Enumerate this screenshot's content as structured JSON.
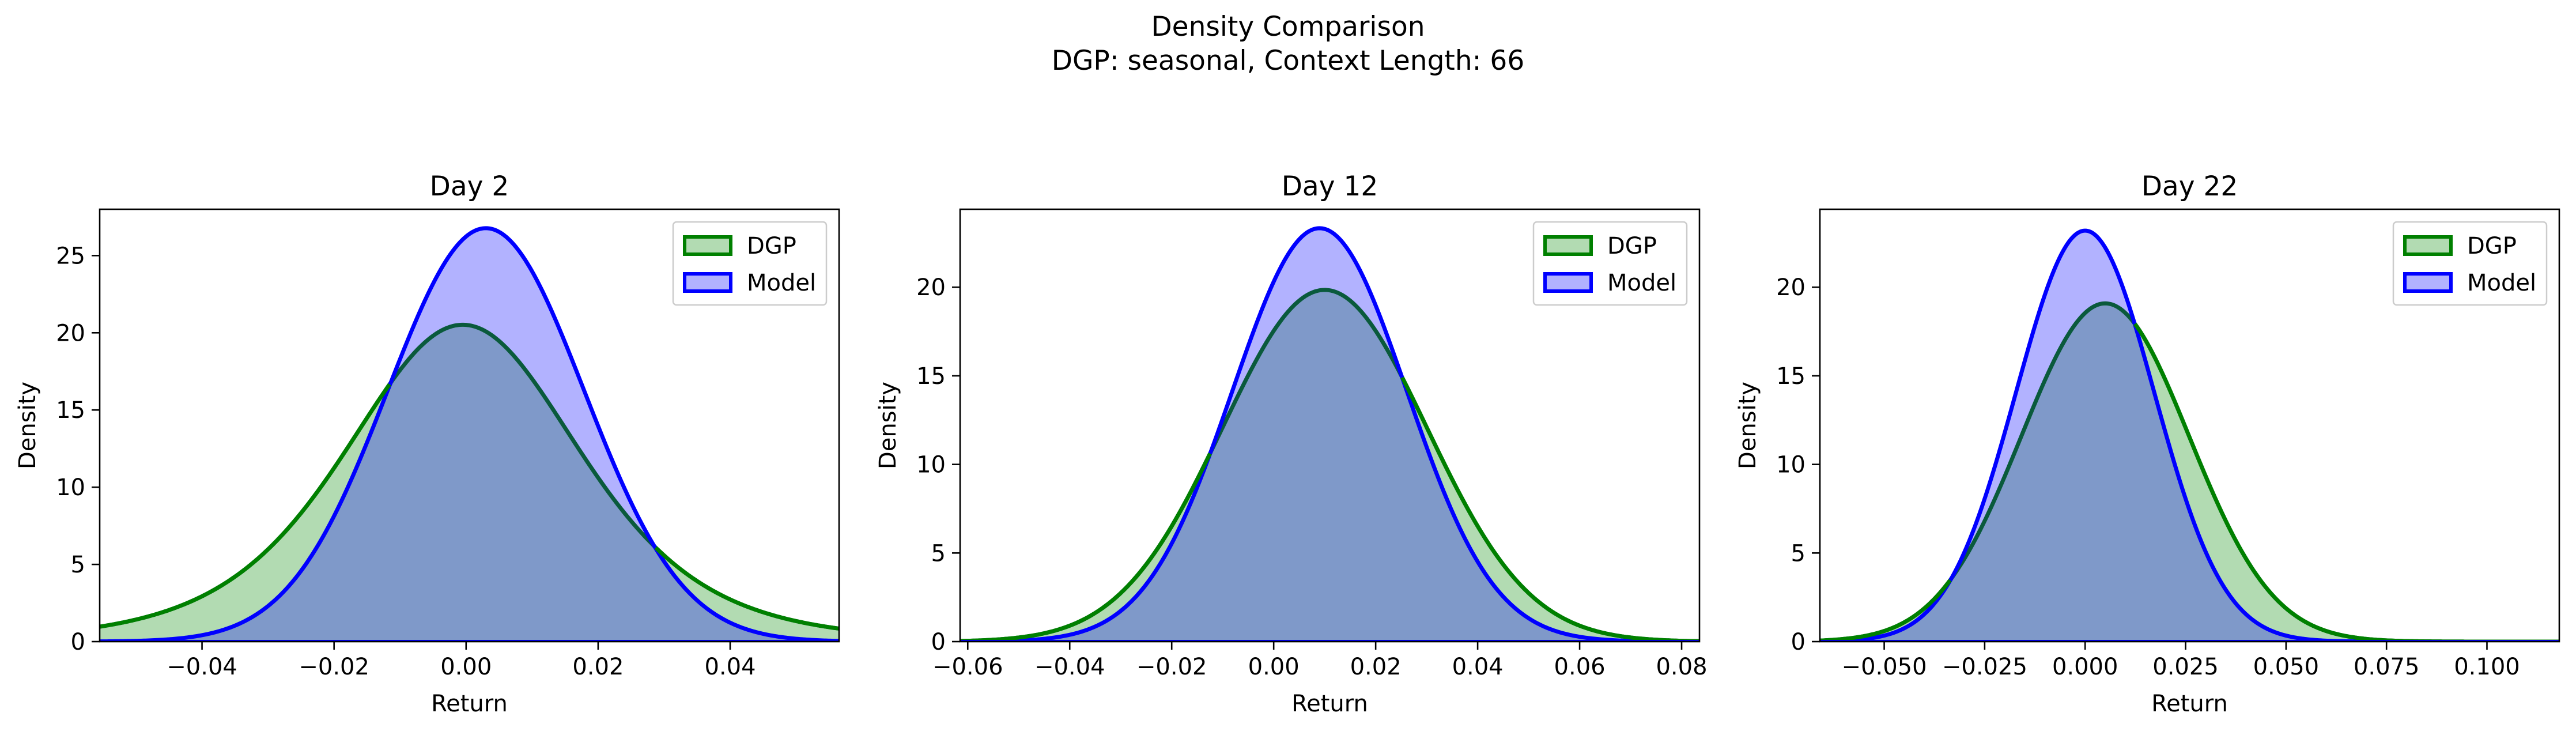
{
  "figure": {
    "title_line1": "Density Comparison",
    "title_line2": "DGP: seasonal, Context Length: 66"
  },
  "colors": {
    "dgp_line": "#008000",
    "dgp_fill": "#b2dbb2",
    "model_line": "#0000ff",
    "model_fill": "#b2b2ff",
    "overlap_fill": "#7f99c9"
  },
  "chart_data": [
    {
      "type": "area",
      "title": "Day 2",
      "xlabel": "Return",
      "ylabel": "Density",
      "xlim": [
        -0.0555,
        0.0565
      ],
      "ylim": [
        0,
        28
      ],
      "xticks": [
        -0.04,
        -0.02,
        0.0,
        0.02,
        0.04
      ],
      "xtick_labels": [
        "−0.04",
        "−0.02",
        "0.00",
        "0.02",
        "0.04"
      ],
      "yticks": [
        0,
        5,
        10,
        15,
        20,
        25
      ],
      "ytick_labels": [
        "0",
        "5",
        "10",
        "15",
        "20",
        "25"
      ],
      "legend": "top-right",
      "series": [
        {
          "name": "DGP",
          "dist": "student-t",
          "loc": -0.0005,
          "scale": 0.0185,
          "df": 5
        },
        {
          "name": "Model",
          "dist": "normal",
          "loc": 0.003,
          "scale": 0.0149
        }
      ]
    },
    {
      "type": "area",
      "title": "Day 12",
      "xlabel": "Return",
      "ylabel": "Density",
      "xlim": [
        -0.0615,
        0.0835
      ],
      "ylim": [
        0,
        24.4
      ],
      "xticks": [
        -0.06,
        -0.04,
        -0.02,
        0.0,
        0.02,
        0.04,
        0.06,
        0.08
      ],
      "xtick_labels": [
        "−0.06",
        "−0.04",
        "−0.02",
        "0.00",
        "0.02",
        "0.04",
        "0.06",
        "0.08"
      ],
      "yticks": [
        0,
        5,
        10,
        15,
        20
      ],
      "ytick_labels": [
        "0",
        "5",
        "10",
        "15",
        "20"
      ],
      "legend": "top-right",
      "series": [
        {
          "name": "DGP",
          "dist": "normal",
          "loc": 0.01,
          "scale": 0.0201
        },
        {
          "name": "Model",
          "dist": "normal",
          "loc": 0.009,
          "scale": 0.0171
        }
      ]
    },
    {
      "type": "area",
      "title": "Day 22",
      "xlabel": "Return",
      "ylabel": "Density",
      "xlim": [
        -0.066,
        0.118
      ],
      "ylim": [
        0,
        24.4
      ],
      "xticks": [
        -0.05,
        -0.025,
        0.0,
        0.025,
        0.05,
        0.075,
        0.1
      ],
      "xtick_labels": [
        "−0.050",
        "−0.025",
        "0.000",
        "0.025",
        "0.050",
        "0.075",
        "0.100"
      ],
      "yticks": [
        0,
        5,
        10,
        15,
        20
      ],
      "ytick_labels": [
        "0",
        "5",
        "10",
        "15",
        "20"
      ],
      "legend": "top-right",
      "series": [
        {
          "name": "DGP",
          "dist": "normal",
          "loc": 0.005,
          "scale": 0.0209
        },
        {
          "name": "Model",
          "dist": "normal",
          "loc": 0.0,
          "scale": 0.0172
        }
      ]
    }
  ]
}
